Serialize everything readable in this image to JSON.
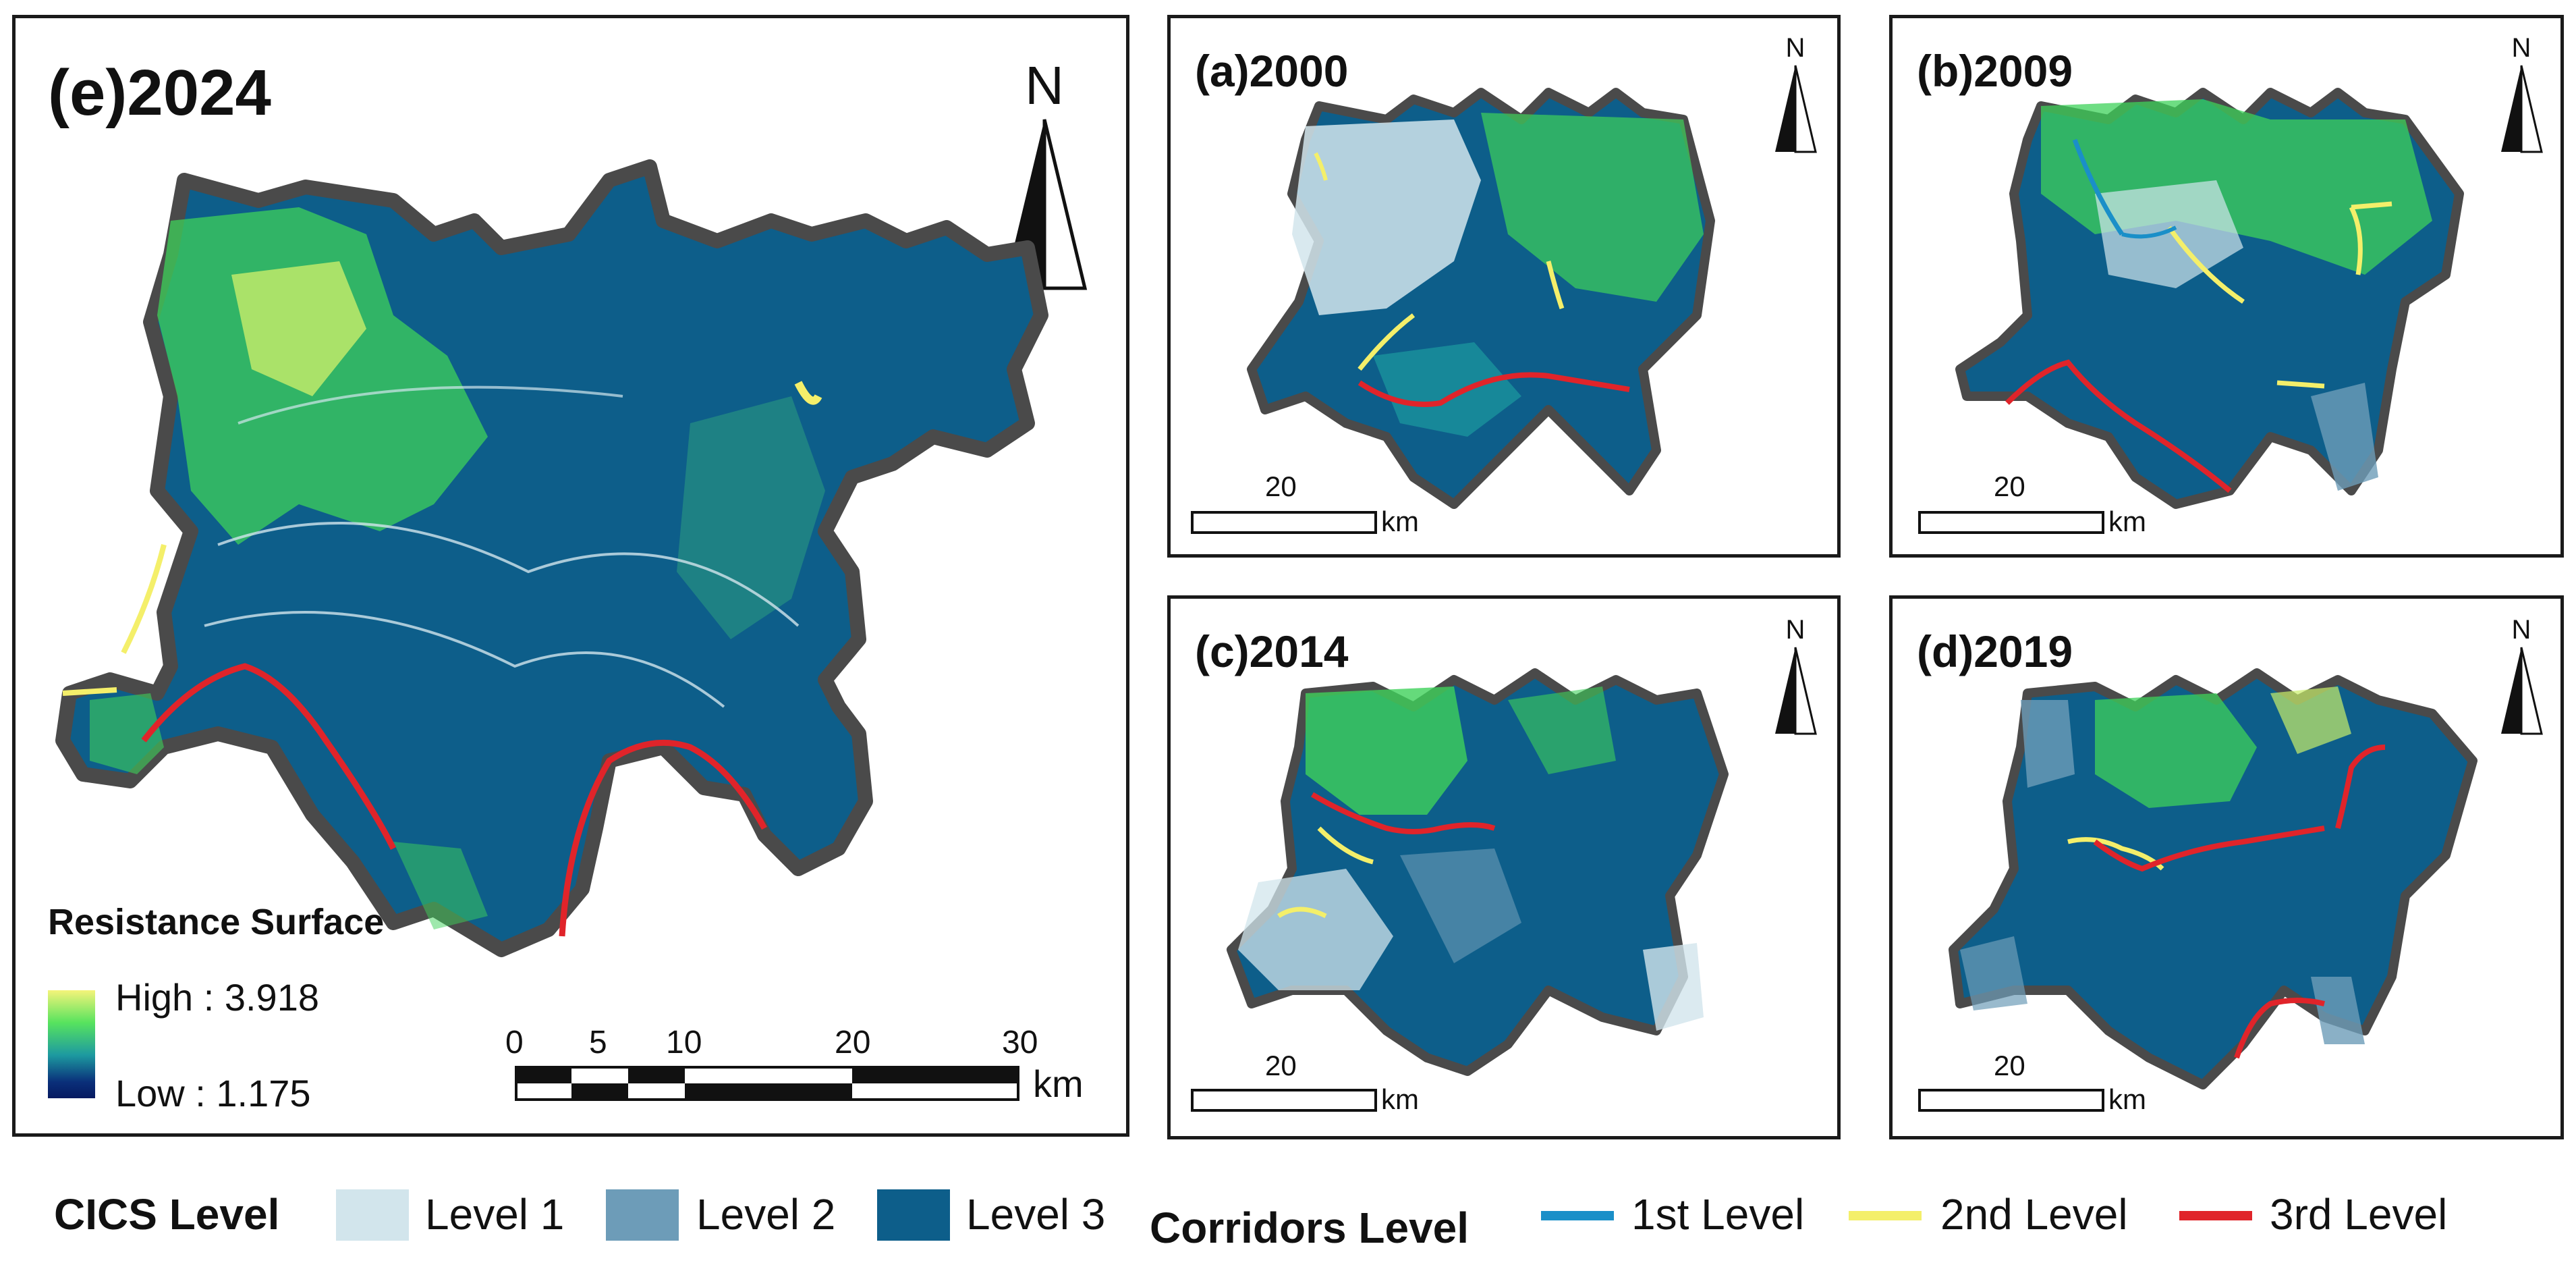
{
  "panels": {
    "e": {
      "title": "(e)2024"
    },
    "a": {
      "title": "(a)2000"
    },
    "b": {
      "title": "(b)2009"
    },
    "c": {
      "title": "(c)2014"
    },
    "d": {
      "title": "(d)2019"
    }
  },
  "north_label": "N",
  "resistance_legend": {
    "title": "Resistance Surface",
    "high": "High : 3.918",
    "low": "Low : 1.175",
    "ramp_colors": [
      "#f4f47a",
      "#57e35e",
      "#1d9aa0",
      "#0a2f7a",
      "#061a60"
    ]
  },
  "main_scale": {
    "ticks": [
      "0",
      "5",
      "10",
      "20",
      "30"
    ],
    "unit": "km"
  },
  "small_scale": {
    "value": "20",
    "unit": "km"
  },
  "cics_legend": {
    "title": "CICS Level",
    "items": [
      {
        "label": "Level 1",
        "color": "#d2e5ec"
      },
      {
        "label": "Level 2",
        "color": "#6d9cb8"
      },
      {
        "label": "Level 3",
        "color": "#0d5e8a"
      }
    ]
  },
  "corridor_legend": {
    "title": "Corridors Level",
    "items": [
      {
        "label": "1st Level",
        "color": "#1a8fc8"
      },
      {
        "label": "2nd Level",
        "color": "#f4ef6a"
      },
      {
        "label": "3rd Level",
        "color": "#e0242a"
      }
    ]
  },
  "colors": {
    "border": "#555555",
    "level3": "#0d5e8a",
    "green": "#3ed15a",
    "yellow": "#f4ef6a"
  }
}
